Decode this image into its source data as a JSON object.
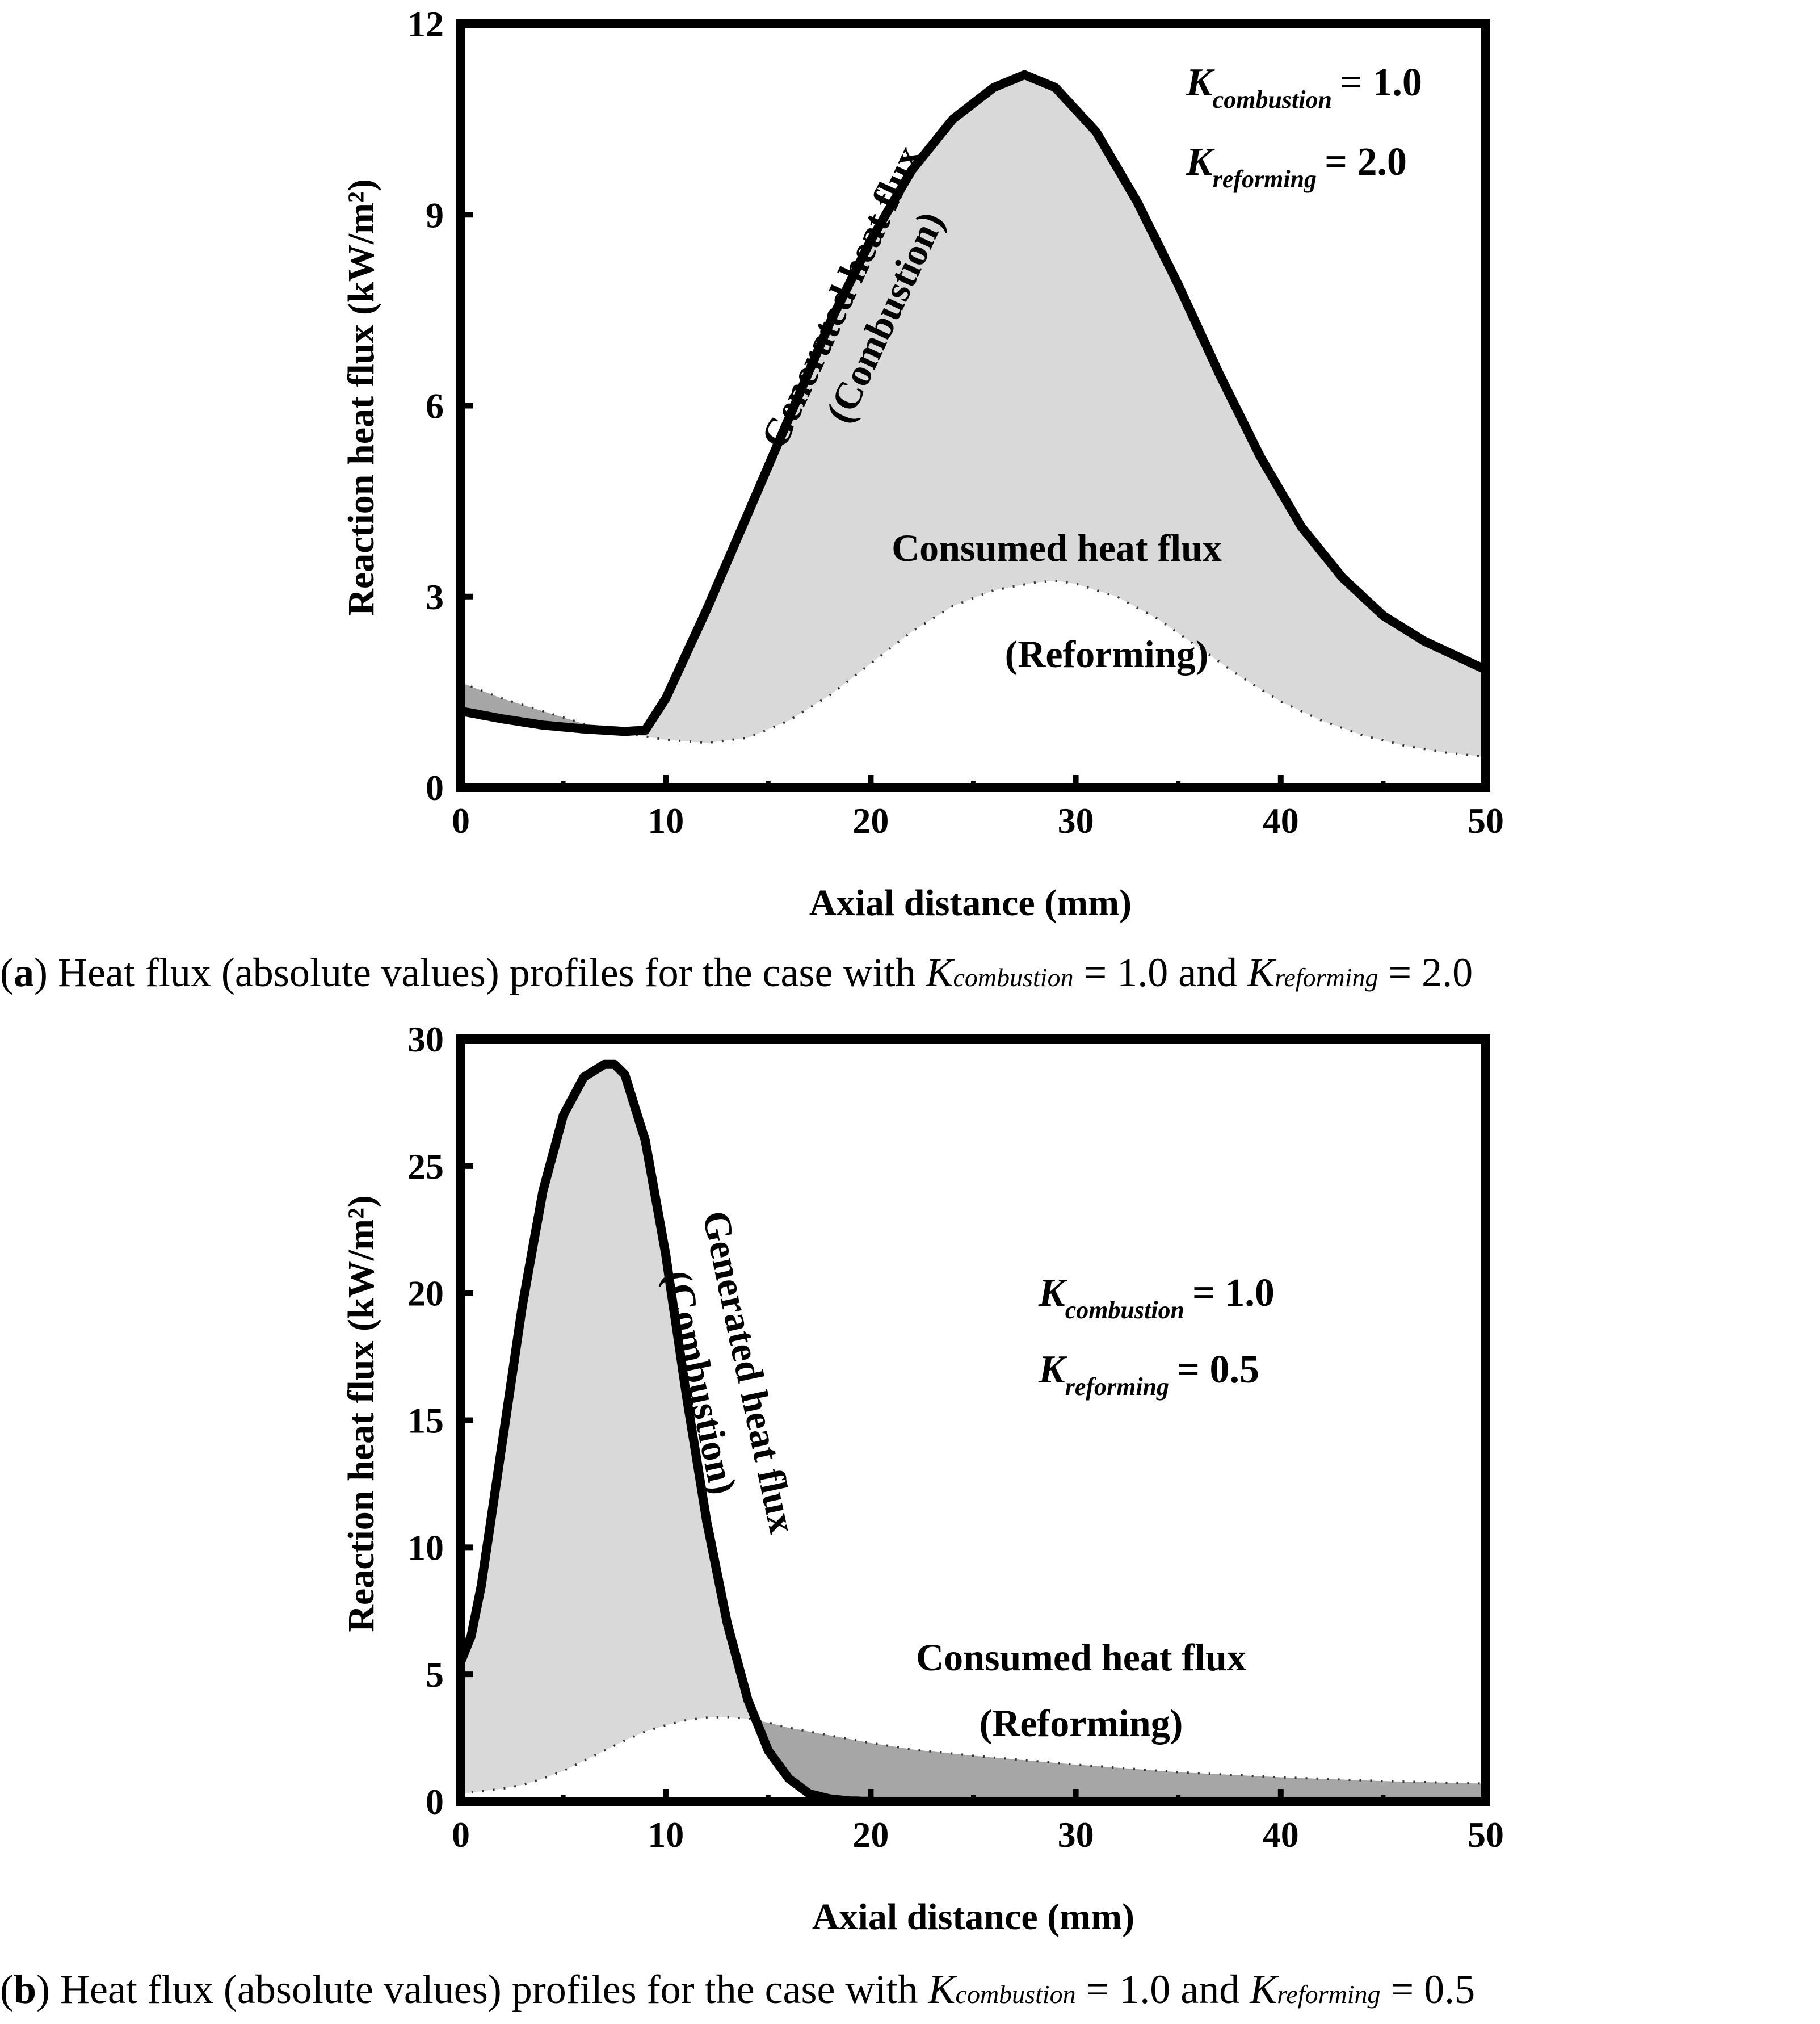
{
  "chart_data": [
    {
      "type": "area",
      "panel": "a",
      "xlabel": "Axial distance (mm)",
      "ylabel": "Reaction heat flux (kW/m²)",
      "xlim": [
        0,
        50
      ],
      "ylim": [
        0,
        12
      ],
      "xticks": [
        "0",
        "10",
        "20",
        "30",
        "40",
        "50"
      ],
      "yticks": [
        "0",
        "3",
        "6",
        "9",
        "12"
      ],
      "series": [
        {
          "name": "Generated heat flux (Combustion)",
          "style": "solid",
          "x": [
            0,
            2,
            4,
            6,
            8,
            9,
            10,
            12,
            14,
            16,
            18,
            20,
            22,
            24,
            26,
            27.5,
            29,
            31,
            33,
            35,
            37,
            39,
            41,
            43,
            45,
            47,
            50
          ],
          "y": [
            1.2,
            1.08,
            0.98,
            0.92,
            0.88,
            0.9,
            1.4,
            2.8,
            4.3,
            5.8,
            7.3,
            8.6,
            9.7,
            10.5,
            11.0,
            11.2,
            11.0,
            10.3,
            9.2,
            7.9,
            6.5,
            5.2,
            4.1,
            3.3,
            2.7,
            2.3,
            1.85
          ]
        },
        {
          "name": "Consumed heat flux (Reforming)",
          "style": "dotted",
          "x": [
            0,
            2,
            4,
            6,
            8,
            10,
            12,
            14,
            16,
            18,
            20,
            22,
            24,
            26,
            28,
            29,
            30,
            32,
            34,
            36,
            38,
            40,
            42,
            44,
            46,
            48,
            50
          ],
          "y": [
            1.65,
            1.4,
            1.2,
            1.0,
            0.85,
            0.75,
            0.7,
            0.78,
            1.05,
            1.45,
            1.95,
            2.45,
            2.85,
            3.1,
            3.22,
            3.25,
            3.2,
            3.0,
            2.65,
            2.2,
            1.75,
            1.35,
            1.05,
            0.82,
            0.66,
            0.55,
            0.48
          ]
        }
      ],
      "annotations": {
        "generated": [
          "Generated heat flux",
          "(Combustion)"
        ],
        "consumed": [
          "Consumed heat flux",
          "(Reforming)"
        ]
      },
      "params": [
        {
          "symbol": "K",
          "sub": "combustion",
          "value": "= 1.0"
        },
        {
          "symbol": "K",
          "sub": "reforming",
          "value": "= 2.0"
        }
      ],
      "colors": {
        "generated_excess": "#d9d9d9",
        "consumed_excess": "#a6a6a6",
        "line": "#000000"
      }
    },
    {
      "type": "area",
      "panel": "b",
      "xlabel": "Axial distance (mm)",
      "ylabel": "Reaction heat flux (kW/m²)",
      "xlim": [
        0,
        50
      ],
      "ylim": [
        0,
        30
      ],
      "xticks": [
        "0",
        "10",
        "20",
        "30",
        "40",
        "50"
      ],
      "yticks": [
        "0",
        "5",
        "10",
        "15",
        "20",
        "25",
        "30"
      ],
      "series": [
        {
          "name": "Generated heat flux (Combustion)",
          "style": "solid",
          "x": [
            0,
            0.5,
            1,
            2,
            3,
            4,
            5,
            6,
            7,
            7.5,
            8,
            9,
            10,
            11,
            12,
            13,
            14,
            15,
            16,
            17,
            18,
            19,
            20,
            25,
            30,
            40,
            50
          ],
          "y": [
            5.5,
            6.5,
            8.5,
            14.0,
            19.5,
            24.0,
            27.0,
            28.5,
            29.0,
            29.0,
            28.6,
            26.0,
            21.5,
            16.0,
            11.0,
            7.0,
            4.0,
            2.0,
            0.9,
            0.3,
            0.1,
            0.02,
            0,
            0,
            0,
            0,
            0
          ]
        },
        {
          "name": "Consumed heat flux (Reforming)",
          "style": "dotted",
          "x": [
            0,
            0.5,
            1,
            2,
            3,
            4,
            5,
            6,
            7,
            8,
            9,
            10,
            11,
            12,
            13,
            14,
            15,
            16,
            18,
            20,
            22,
            25,
            30,
            35,
            40,
            45,
            50
          ],
          "y": [
            0.3,
            0.35,
            0.4,
            0.5,
            0.65,
            0.9,
            1.2,
            1.6,
            2.0,
            2.4,
            2.75,
            3.0,
            3.2,
            3.3,
            3.32,
            3.25,
            3.1,
            2.9,
            2.6,
            2.3,
            2.05,
            1.8,
            1.45,
            1.15,
            0.95,
            0.8,
            0.7
          ]
        }
      ],
      "annotations": {
        "generated": [
          "Generated heat flux",
          "(Combustion)"
        ],
        "consumed": [
          "Consumed heat flux",
          "(Reforming)"
        ]
      },
      "params": [
        {
          "symbol": "K",
          "sub": "combustion",
          "value": "= 1.0"
        },
        {
          "symbol": "K",
          "sub": "reforming",
          "value": "= 0.5"
        }
      ],
      "colors": {
        "generated_excess": "#d9d9d9",
        "consumed_excess": "#a6a6a6",
        "line": "#000000"
      }
    }
  ],
  "captions": [
    {
      "label": "a",
      "text_before": "Heat flux (absolute values) profiles for the case with ",
      "k1_symbol": "K",
      "k1_sub": "combustion",
      "k1_value": " = 1.0 and ",
      "k2_symbol": "K",
      "k2_sub": "reforming",
      "k2_value": " = 2.0"
    },
    {
      "label": "b",
      "text_before": "Heat flux (absolute values) profiles for the case with ",
      "k1_symbol": "K",
      "k1_sub": "combustion",
      "k1_value": " = 1.0 and ",
      "k2_symbol": "K",
      "k2_sub": "reforming",
      "k2_value": " = 0.5"
    }
  ]
}
